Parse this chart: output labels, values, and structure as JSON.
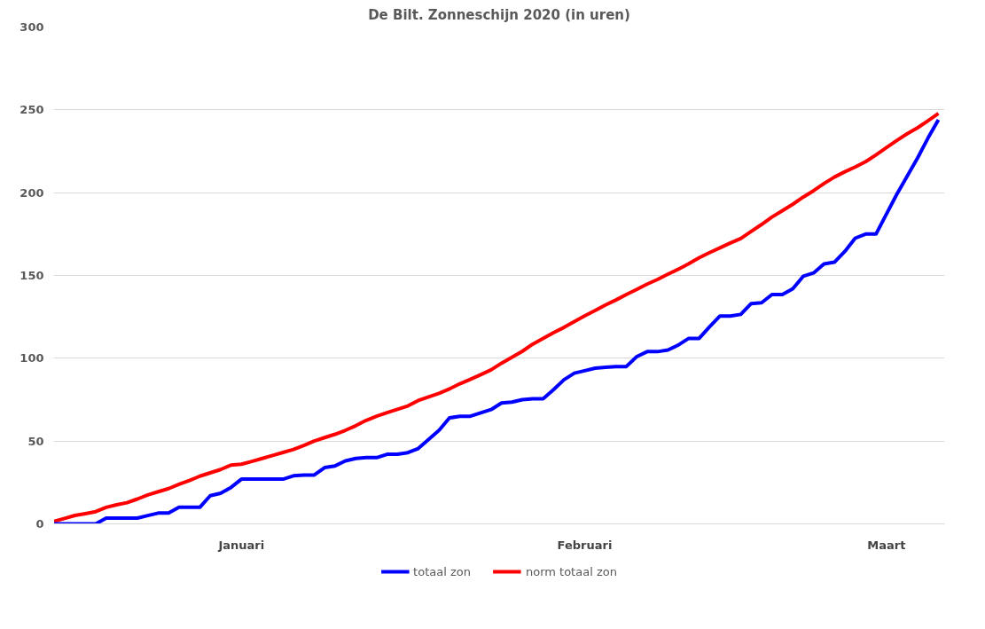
{
  "chart_data": {
    "type": "line",
    "title": "De Bilt. Zonneschijn 2020 (in uren)",
    "categories": [
      null,
      null,
      null,
      null,
      null,
      null,
      null,
      null,
      null,
      null,
      null,
      null,
      null,
      null,
      null,
      null,
      null,
      null,
      "Januari",
      null,
      null,
      null,
      null,
      null,
      null,
      null,
      null,
      null,
      null,
      null,
      null,
      null,
      null,
      null,
      null,
      null,
      null,
      null,
      null,
      null,
      null,
      null,
      null,
      null,
      null,
      null,
      null,
      null,
      null,
      null,
      null,
      "Februari",
      null,
      null,
      null,
      null,
      null,
      null,
      null,
      null,
      null,
      null,
      null,
      null,
      null,
      null,
      null,
      null,
      null,
      null,
      null,
      null,
      null,
      null,
      null,
      null,
      null,
      null,
      null,
      null,
      "Maart",
      null,
      null,
      null,
      null,
      null
    ],
    "series": [
      {
        "name": "totaal zon",
        "color": "#0000ff",
        "values": [
          0,
          0,
          0,
          0,
          0,
          3.5,
          3.5,
          3.5,
          3.5,
          5,
          6.5,
          6.5,
          10,
          10,
          10,
          17,
          18.5,
          22,
          27,
          27,
          27,
          27,
          27,
          29,
          29.5,
          29.5,
          34,
          35,
          38,
          39.5,
          40,
          40,
          42,
          42,
          43,
          45.5,
          51,
          56.5,
          64,
          65,
          65,
          67,
          69,
          73,
          73.5,
          75,
          75.5,
          75.5,
          81,
          87,
          91,
          92.5,
          94,
          94.5,
          95,
          95,
          101,
          104,
          104,
          105,
          108,
          112,
          112,
          119,
          125.5,
          125.5,
          126.5,
          133,
          133.5,
          138.5,
          138.5,
          142,
          149.5,
          151.5,
          157,
          158,
          164.5,
          172.5,
          175,
          175,
          187,
          199,
          210,
          221,
          233,
          244
        ]
      },
      {
        "name": "norm totaal zon",
        "color": "#ff0000",
        "values": [
          1.5,
          3.3,
          5.1,
          6.2,
          7.4,
          10,
          11.5,
          12.8,
          15,
          17.5,
          19.4,
          21.3,
          23.9,
          26.2,
          28.8,
          30.8,
          32.8,
          35.5,
          36,
          37.7,
          39.5,
          41.3,
          43.1,
          44.9,
          47.3,
          50,
          52.1,
          54.1,
          56.5,
          59.3,
          62.5,
          65,
          67.2,
          69.2,
          71.2,
          74.5,
          76.7,
          78.8,
          81.5,
          84.6,
          87.3,
          90.1,
          93,
          97,
          100.6,
          104.2,
          108.5,
          112,
          115.4,
          118.6,
          122.1,
          125.6,
          128.8,
          132.2,
          135.2,
          138.5,
          141.6,
          144.8,
          147.6,
          150.8,
          153.8,
          157.1,
          160.7,
          163.8,
          166.7,
          169.6,
          172.3,
          176.6,
          180.8,
          185.3,
          189.1,
          193,
          197.3,
          201.2,
          205.5,
          209.4,
          212.6,
          215.5,
          218.7,
          222.8,
          227.2,
          231.5,
          235.6,
          239.2,
          243.4,
          247.8
        ]
      }
    ],
    "ylim": [
      0,
      300
    ],
    "yticks": [
      0,
      50,
      100,
      150,
      200,
      250,
      300
    ],
    "grid": "y",
    "legend": "bottom",
    "line_style": "solid",
    "marker": "none"
  }
}
